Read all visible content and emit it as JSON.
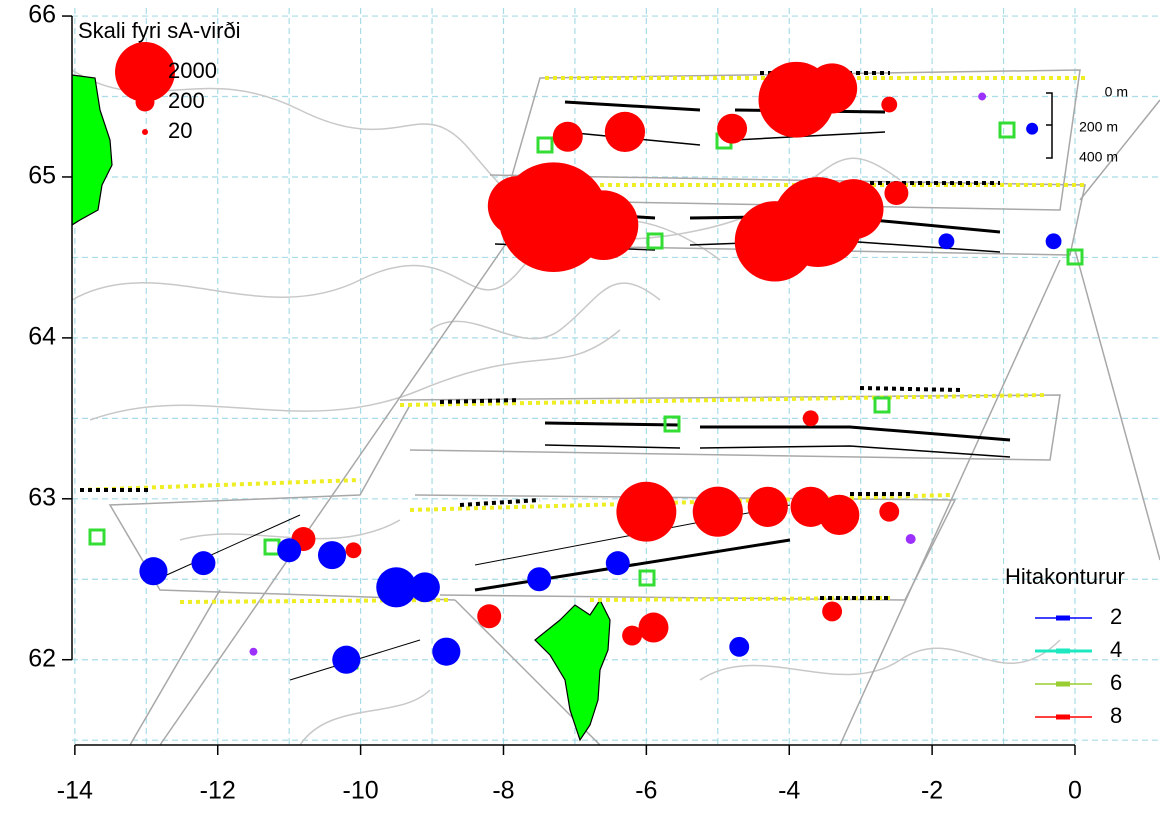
{
  "chart_data": {
    "type": "bubble",
    "xlim": [
      -14.04,
      1.19
    ],
    "ylim": [
      61.47,
      66.05
    ],
    "xticks": [
      -14,
      -12,
      -10,
      -8,
      -6,
      -4,
      -2,
      0
    ],
    "yticks": [
      62,
      63,
      64,
      65,
      66
    ],
    "grid": true,
    "series": [
      {
        "color": "#ff0000",
        "x": [
          -7.3,
          -7.8,
          -6.6,
          -3.6,
          -4.2,
          -3.1,
          -2.5,
          -6.7,
          -3.9,
          -3.4,
          -6.3,
          -7.1,
          -4.8,
          -2.6,
          -6.0,
          -5.0,
          -4.3,
          -3.7,
          -3.3,
          -2.6,
          -5.9,
          -6.2,
          -8.2,
          -3.4,
          -10.8,
          -10.1,
          -3.7
        ],
        "values": [
          64.75,
          64.82,
          64.7,
          64.72,
          64.6,
          64.8,
          64.9,
          64.85,
          65.48,
          65.55,
          65.28,
          65.25,
          65.3,
          65.45,
          62.92,
          62.92,
          62.95,
          62.95,
          62.9,
          62.92,
          62.2,
          62.15,
          62.27,
          62.3,
          62.75,
          62.68,
          63.5
        ],
        "sizes": [
          6700,
          2000,
          2700,
          4500,
          3600,
          2000,
          320,
          320,
          3200,
          1400,
          900,
          500,
          500,
          140,
          2000,
          1400,
          900,
          900,
          900,
          220,
          500,
          220,
          320,
          220,
          320,
          140,
          140
        ]
      },
      {
        "color": "#0000ff",
        "x": [
          -9.5,
          -9.1,
          -12.9,
          -12.2,
          -11.0,
          -10.4,
          -8.8,
          -10.2,
          -7.5,
          -6.4,
          -4.7,
          -1.8,
          -0.6,
          -0.3
        ],
        "values": [
          62.45,
          62.45,
          62.55,
          62.6,
          62.68,
          62.65,
          62.05,
          62.0,
          62.5,
          62.6,
          62.08,
          64.6,
          65.3,
          64.6
        ],
        "sizes": [
          900,
          500,
          440,
          320,
          320,
          440,
          440,
          440,
          320,
          320,
          220,
          140,
          80,
          140
        ]
      },
      {
        "color": "#9b30ff",
        "x": [
          -11.5,
          -2.3,
          -1.3
        ],
        "values": [
          62.05,
          62.75,
          65.5
        ],
        "sizes": [
          35,
          55,
          35
        ]
      }
    ],
    "size_legend": {
      "title": "Skali fyri sA-virði",
      "values": [
        2000,
        200,
        20
      ],
      "color": "#ff0000"
    },
    "temperature_legend": {
      "title": "Hitakonturur",
      "items": [
        {
          "label": 2,
          "color": "#0000ff"
        },
        {
          "label": 4,
          "color": "#1ee8c0"
        },
        {
          "label": 6,
          "color": "#9acd32"
        },
        {
          "label": 8,
          "color": "#ff0000"
        }
      ]
    },
    "depth_scale": [
      "0 m",
      "200 m",
      "400 m"
    ]
  }
}
